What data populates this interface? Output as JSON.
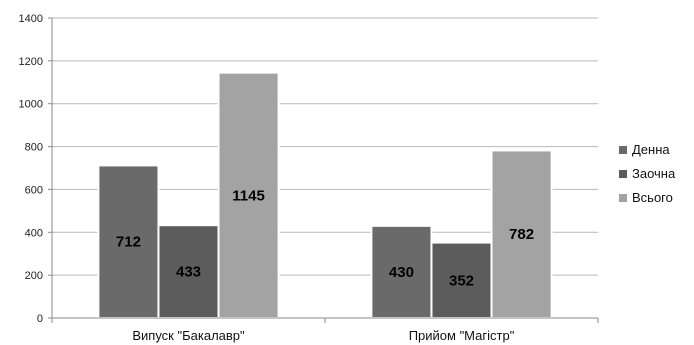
{
  "chart_data": {
    "type": "bar",
    "categories": [
      "Випуск \"Бакалавр\"",
      "Прийом \"Магістр\""
    ],
    "series": [
      {
        "name": "Денна",
        "values": [
          712,
          430
        ],
        "color": "#6a6a6a"
      },
      {
        "name": "Заочна",
        "values": [
          433,
          352
        ],
        "color": "#5c5c5c"
      },
      {
        "name": "Всього",
        "values": [
          1145,
          782
        ],
        "color": "#a3a3a3"
      }
    ],
    "ylim": [
      0,
      1400
    ],
    "yticks": [
      0,
      200,
      400,
      600,
      800,
      1000,
      1200,
      1400
    ],
    "grid": true,
    "legend_position": "right"
  }
}
